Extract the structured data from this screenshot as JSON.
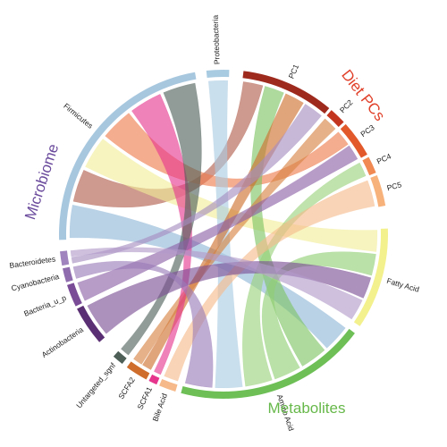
{
  "groups": {
    "microbiome": {
      "label": "Microbiome",
      "color": "#6a4a9c"
    },
    "diet": {
      "label": "Diet PCs",
      "color": "#e0402a"
    },
    "metabolites": {
      "label": "Metabolites",
      "color": "#67b84a"
    }
  },
  "segments": [
    {
      "id": "proteobacteria",
      "label": "Proteobacteria",
      "color": "#a9cbe2"
    },
    {
      "id": "pc1",
      "label": "PC1",
      "color": "#9e2a1e"
    },
    {
      "id": "pc2",
      "label": "PC2",
      "color": "#c4351f"
    },
    {
      "id": "pc3",
      "label": "PC3",
      "color": "#e25a2c"
    },
    {
      "id": "pc4",
      "label": "PC4",
      "color": "#f08a52"
    },
    {
      "id": "pc5",
      "label": "PC5",
      "color": "#f7b27c"
    },
    {
      "id": "fatty_acid",
      "label": "Fatty Acid",
      "color": "#f3f08e"
    },
    {
      "id": "amino_acid",
      "label": "Amino Acid",
      "color": "#6dbf56"
    },
    {
      "id": "bile_acid",
      "label": "Bile Acid",
      "color": "#f6b989"
    },
    {
      "id": "scfa1",
      "label": "SCFA1",
      "color": "#e5358c"
    },
    {
      "id": "scfa2",
      "label": "SCFA2",
      "color": "#cf6e2c"
    },
    {
      "id": "untargeted",
      "label": "Untargeted_sgnf",
      "color": "#4e5f58"
    },
    {
      "id": "actinobacteria",
      "label": "Actinobacteria",
      "color": "#5b2f73"
    },
    {
      "id": "bacteria_u_p",
      "label": "Bacteria_u_p",
      "color": "#7a4b97"
    },
    {
      "id": "cyanobacteria",
      "label": "Cyanobacteria",
      "color": "#8e6cae"
    },
    {
      "id": "bacteroidetes",
      "label": "Bacteroidetes",
      "color": "#9f84bd"
    },
    {
      "id": "firmicutes",
      "label": "Firmicutes",
      "color": "#a7c7df"
    }
  ],
  "links": [
    {
      "from": "firmicutes",
      "to": "amino_acid",
      "color": "#8fb6d6"
    },
    {
      "from": "firmicutes",
      "to": "pc1",
      "color": "#b05a48"
    },
    {
      "from": "firmicutes",
      "to": "fatty_acid",
      "color": "#f2ee9a"
    },
    {
      "from": "firmicutes",
      "to": "pc3",
      "color": "#ef7a4c"
    },
    {
      "from": "amino_acid",
      "to": "pc1",
      "color": "#7cc462"
    },
    {
      "from": "amino_acid",
      "to": "fatty_acid",
      "color": "#8fcf72"
    },
    {
      "from": "amino_acid",
      "to": "pc4",
      "color": "#9ad27b"
    },
    {
      "from": "proteobacteria",
      "to": "amino_acid",
      "color": "#a9cbe2"
    },
    {
      "from": "scfa2",
      "to": "pc1",
      "color": "#cf6e2c"
    },
    {
      "from": "scfa2",
      "to": "pc2",
      "color": "#d7813f"
    },
    {
      "from": "scfa1",
      "to": "firmicutes",
      "color": "#e5358c"
    },
    {
      "from": "untargeted",
      "to": "firmicutes",
      "color": "#4e5f58"
    },
    {
      "from": "bile_acid",
      "to": "pc5",
      "color": "#f6b989"
    },
    {
      "from": "actinobacteria",
      "to": "fatty_acid",
      "color": "#7b4d95"
    },
    {
      "from": "bacteria_u_p",
      "to": "pc3",
      "color": "#8b5fa6"
    },
    {
      "from": "cyanobacteria",
      "to": "amino_acid",
      "color": "#9a7bb8"
    },
    {
      "from": "bacteroidetes",
      "to": "pc1",
      "color": "#a58cc0"
    },
    {
      "from": "bacteroidetes",
      "to": "fatty_acid",
      "color": "#b19ac9"
    }
  ]
}
